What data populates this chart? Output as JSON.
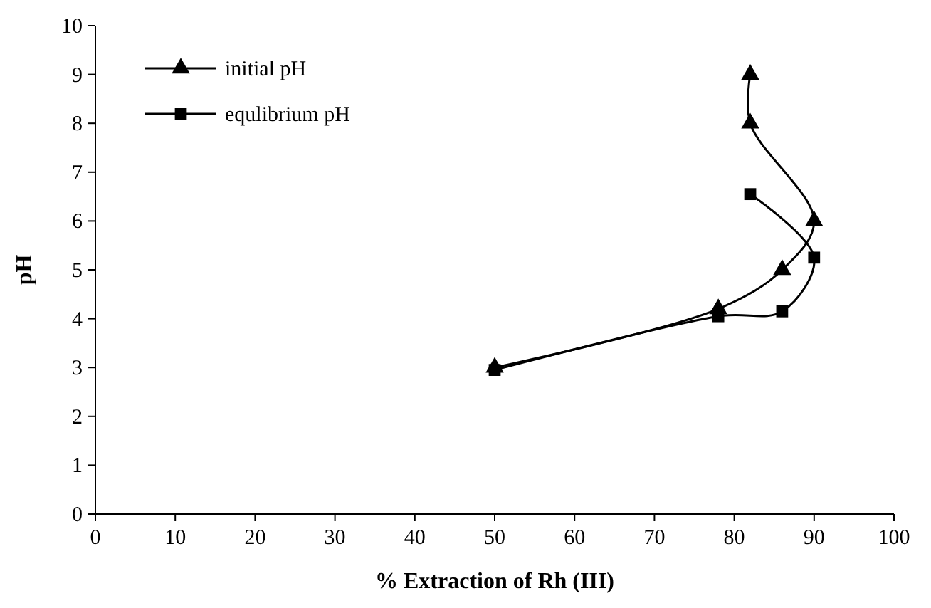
{
  "chart_data": {
    "type": "line",
    "xlabel": "% Extraction of Rh (III)",
    "ylabel": "pH",
    "xlim": [
      0,
      100
    ],
    "xticks": [
      0,
      10,
      20,
      30,
      40,
      50,
      60,
      70,
      80,
      90,
      100
    ],
    "ylim": [
      0,
      10
    ],
    "yticks": [
      0,
      1,
      2,
      3,
      4,
      5,
      6,
      7,
      8,
      9,
      10
    ],
    "grid": false,
    "legend": "top left",
    "line_style": "solid",
    "series": [
      {
        "name": "initial pH",
        "color": "#000000",
        "marker": "triangle",
        "x": [
          50,
          78,
          86,
          90,
          82,
          82
        ],
        "values": [
          3.0,
          4.2,
          5.0,
          6.0,
          8.0,
          9.0
        ]
      },
      {
        "name": "equlibrium pH",
        "color": "#000000",
        "marker": "square",
        "x": [
          50,
          78,
          86,
          90,
          82
        ],
        "values": [
          2.95,
          4.05,
          4.15,
          5.25,
          6.55
        ]
      }
    ]
  }
}
